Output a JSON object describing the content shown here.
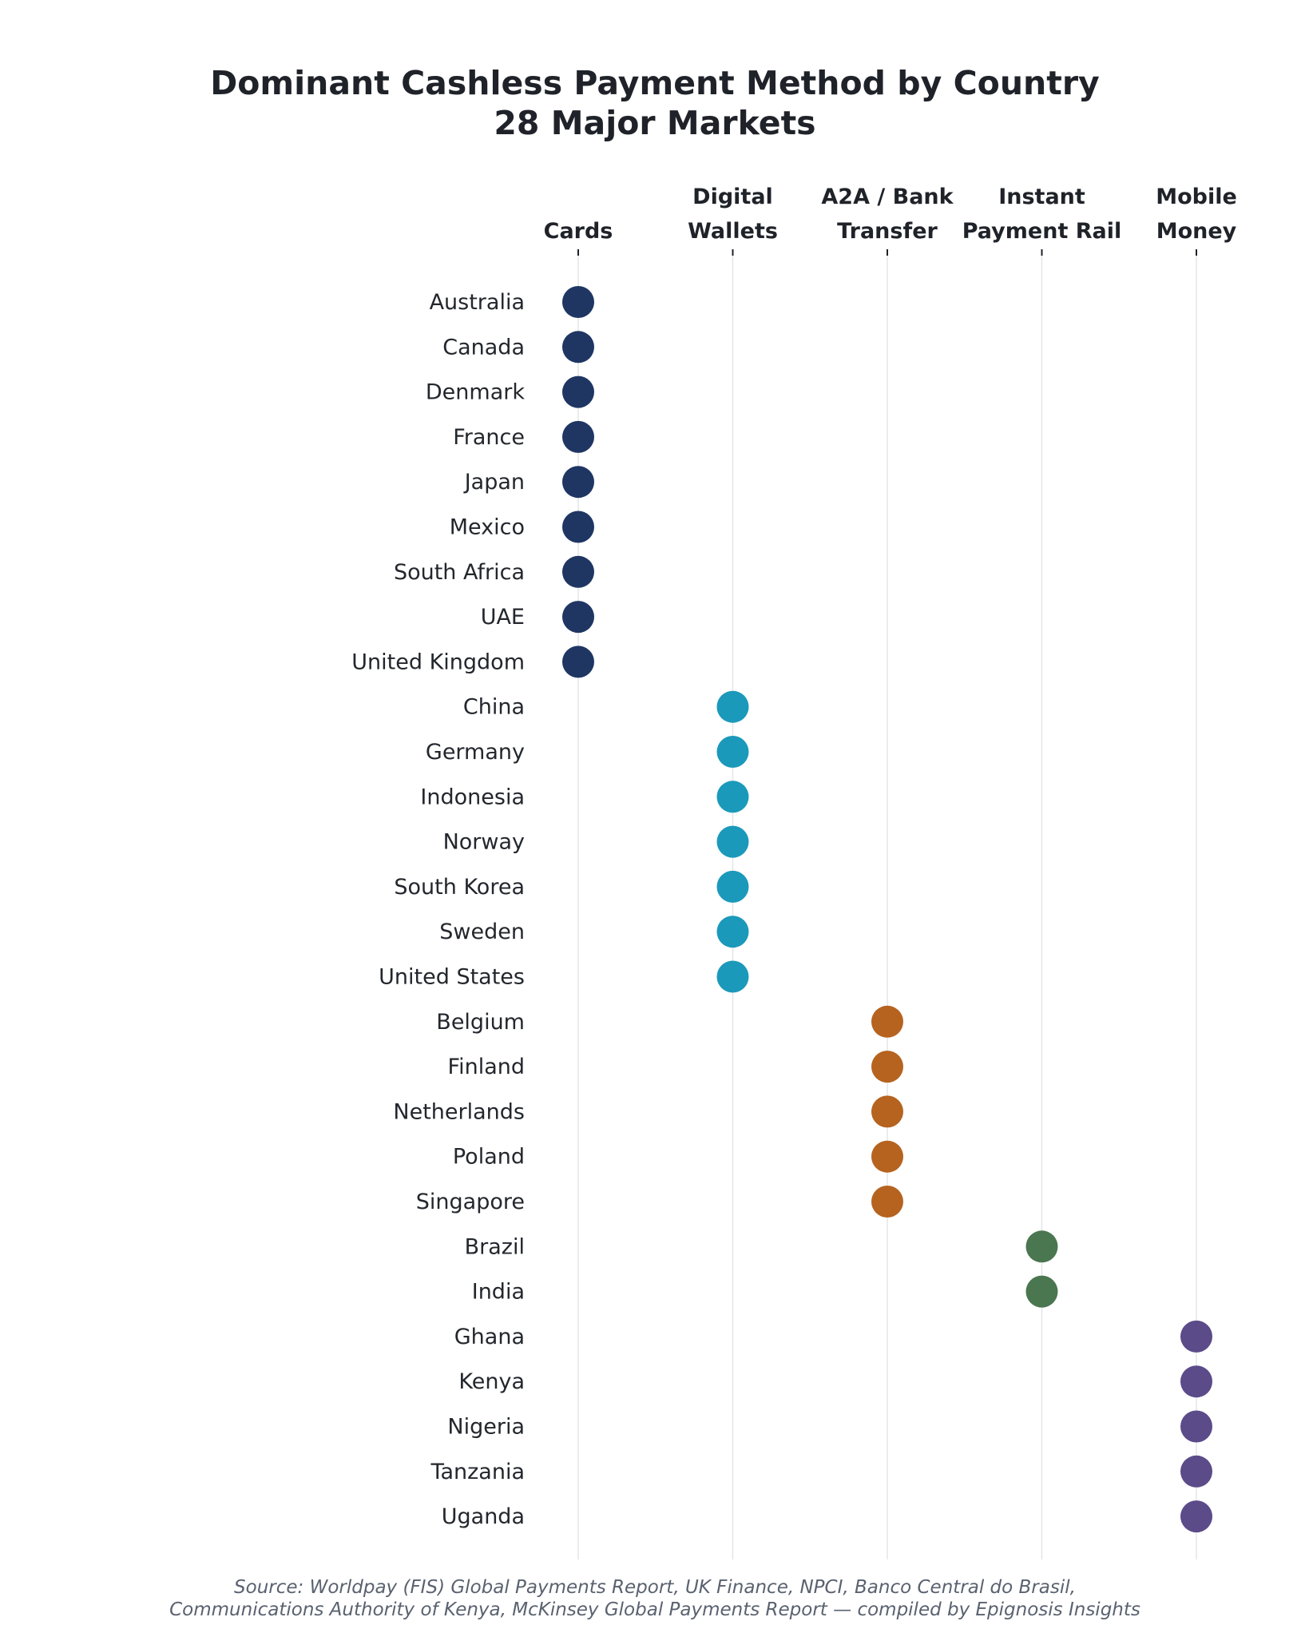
{
  "chart_data": {
    "type": "scatter",
    "title": "Dominant Cashless Payment Method by Country",
    "subtitle": "28 Major Markets",
    "source": [
      "Source: Worldpay (FIS) Global Payments Report, UK Finance, NPCI, Banco Central do Brasil,",
      "Communications Authority of Kenya, McKinsey Global Payments Report — compiled by Epignosis Insights"
    ],
    "categories": [
      {
        "lines": [
          "Cards"
        ],
        "color": "#1f3663"
      },
      {
        "lines": [
          "Digital",
          "Wallets"
        ],
        "color": "#1b99ba"
      },
      {
        "lines": [
          "A2A / Bank",
          "Transfer"
        ],
        "color": "#b5631f"
      },
      {
        "lines": [
          "Instant",
          "Payment Rail"
        ],
        "color": "#4a7650"
      },
      {
        "lines": [
          "Mobile",
          "Money"
        ],
        "color": "#5b4b89"
      }
    ],
    "points": [
      {
        "country": "Australia",
        "category": 0
      },
      {
        "country": "Canada",
        "category": 0
      },
      {
        "country": "Denmark",
        "category": 0
      },
      {
        "country": "France",
        "category": 0
      },
      {
        "country": "Japan",
        "category": 0
      },
      {
        "country": "Mexico",
        "category": 0
      },
      {
        "country": "South Africa",
        "category": 0
      },
      {
        "country": "UAE",
        "category": 0
      },
      {
        "country": "United Kingdom",
        "category": 0
      },
      {
        "country": "China",
        "category": 1
      },
      {
        "country": "Germany",
        "category": 1
      },
      {
        "country": "Indonesia",
        "category": 1
      },
      {
        "country": "Norway",
        "category": 1
      },
      {
        "country": "South Korea",
        "category": 1
      },
      {
        "country": "Sweden",
        "category": 1
      },
      {
        "country": "United States",
        "category": 1
      },
      {
        "country": "Belgium",
        "category": 2
      },
      {
        "country": "Finland",
        "category": 2
      },
      {
        "country": "Netherlands",
        "category": 2
      },
      {
        "country": "Poland",
        "category": 2
      },
      {
        "country": "Singapore",
        "category": 2
      },
      {
        "country": "Brazil",
        "category": 3
      },
      {
        "country": "India",
        "category": 3
      },
      {
        "country": "Ghana",
        "category": 4
      },
      {
        "country": "Kenya",
        "category": 4
      },
      {
        "country": "Nigeria",
        "category": 4
      },
      {
        "country": "Tanzania",
        "category": 4
      },
      {
        "country": "Uganda",
        "category": 4
      }
    ],
    "grid": true,
    "legend": "none"
  }
}
